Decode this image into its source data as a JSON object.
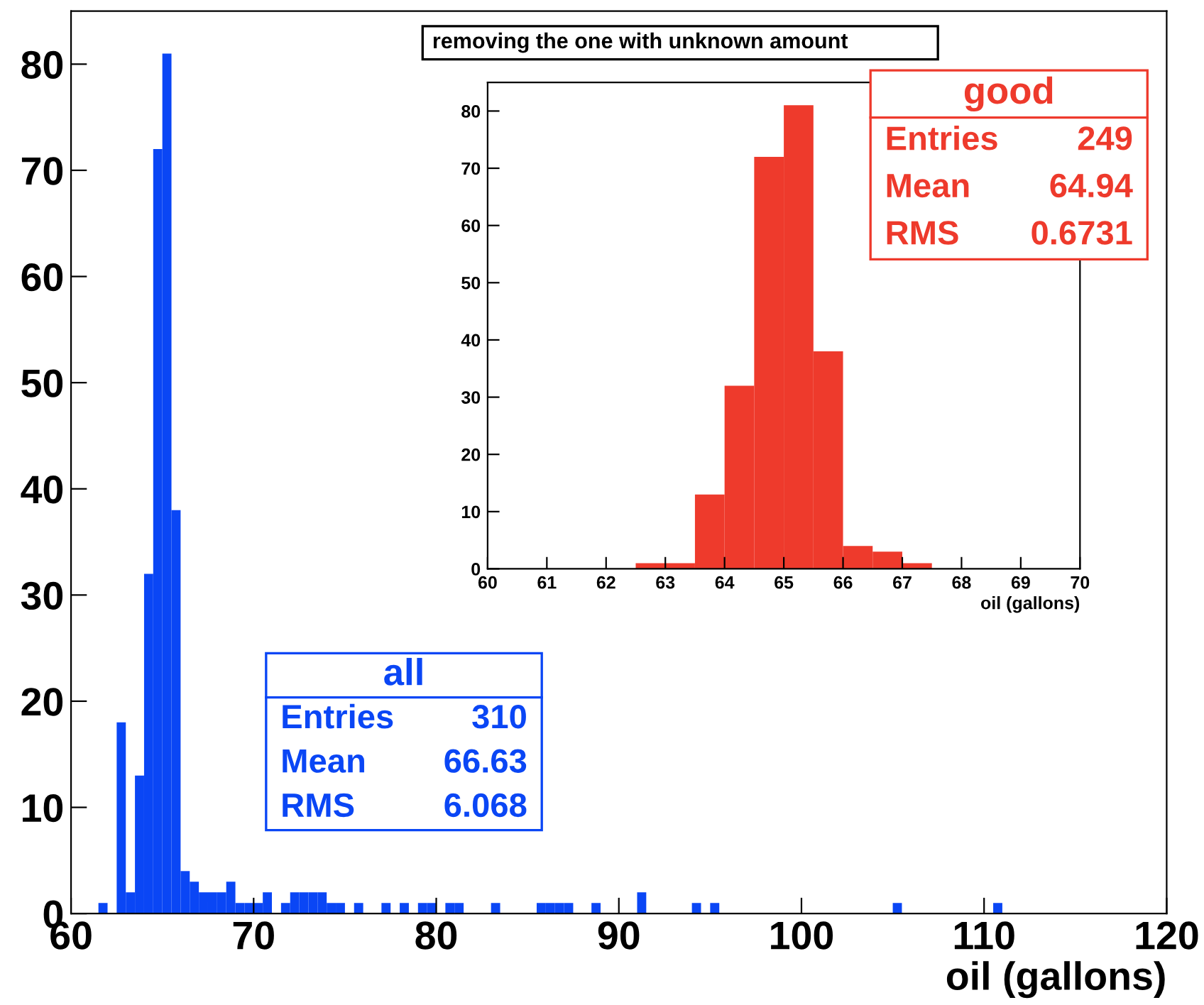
{
  "chart_data": [
    {
      "type": "histogram",
      "color": "#0a46f5",
      "xlabel": "oil (gallons)",
      "bins": [
        60,
        60.5,
        61,
        61.5,
        62,
        62.5,
        63,
        63.5,
        64,
        64.5,
        65,
        65.5,
        66,
        66.5,
        67,
        67.5,
        68,
        68.5,
        69,
        69.5,
        70,
        70.5,
        71,
        71.5,
        72,
        72.5,
        73,
        73.5,
        74,
        74.5,
        75,
        75.5,
        76,
        76.5,
        77,
        77.5,
        78,
        78.5,
        79,
        79.5,
        80,
        80.5,
        81,
        81.5,
        82,
        82.5,
        83,
        83.5,
        84,
        84.5,
        85,
        85.5,
        86,
        86.5,
        87,
        87.5,
        88,
        88.5,
        89,
        89.5,
        90,
        90.5,
        91,
        91.5,
        92,
        92.5,
        93,
        93.5,
        94,
        94.5,
        95,
        95.5,
        96,
        96.5,
        97,
        97.5,
        98,
        98.5,
        99,
        99.5,
        100,
        100.5,
        101,
        101.5,
        102,
        102.5,
        103,
        103.5,
        104,
        104.5,
        105,
        105.5,
        106,
        106.5,
        107,
        107.5,
        108,
        108.5,
        109,
        109.5,
        110,
        110.5,
        111,
        111.5,
        112,
        112.5,
        113,
        113.5,
        114,
        114.5,
        115,
        115.5,
        116,
        116.5,
        117,
        117.5,
        118,
        118.5,
        119,
        119.5,
        120
      ],
      "values": [
        0,
        0,
        0,
        1,
        0,
        18,
        2,
        13,
        32,
        72,
        81,
        38,
        4,
        3,
        2,
        2,
        2,
        3,
        1,
        1,
        1,
        2,
        0,
        1,
        2,
        2,
        2,
        2,
        1,
        1,
        0,
        1,
        0,
        0,
        1,
        0,
        1,
        0,
        1,
        1,
        0,
        1,
        1,
        0,
        0,
        0,
        1,
        0,
        0,
        0,
        0,
        1,
        1,
        1,
        1,
        0,
        0,
        1,
        0,
        0,
        0,
        0,
        2,
        0,
        0,
        0,
        0,
        0,
        1,
        0,
        1,
        0,
        0,
        0,
        0,
        0,
        0,
        0,
        0,
        0,
        0,
        0,
        0,
        0,
        0,
        0,
        0,
        0,
        0,
        0,
        1,
        0,
        0,
        0,
        0,
        0,
        0,
        0,
        0,
        0,
        0,
        1,
        0,
        0,
        0,
        0,
        0,
        0,
        0,
        0,
        0,
        0,
        0,
        0,
        0,
        0,
        0,
        0,
        0,
        0
      ],
      "xlim": [
        60,
        120
      ],
      "xticks": [
        60,
        70,
        80,
        90,
        100,
        110,
        120
      ],
      "ylim": [
        0,
        85
      ],
      "yticks": [
        0,
        10,
        20,
        30,
        40,
        50,
        60,
        70,
        80
      ],
      "annotations": [
        "all",
        "Entries",
        "310",
        "Mean",
        "66.63",
        "RMS",
        "6.068"
      ]
    },
    {
      "type": "histogram",
      "color": "#ee3a2c",
      "title": "removing the one with unknown amount",
      "xlabel": "oil (gallons)",
      "bins": [
        60,
        60.5,
        61,
        61.5,
        62,
        62.5,
        63,
        63.5,
        64,
        64.5,
        65,
        65.5,
        66,
        66.5,
        67,
        67.5,
        68,
        68.5,
        69,
        69.5,
        70
      ],
      "values": [
        0,
        0,
        0,
        0,
        0,
        1,
        1,
        13,
        32,
        72,
        81,
        38,
        4,
        3,
        1,
        0,
        0,
        0,
        0,
        0
      ],
      "xlim": [
        60,
        70
      ],
      "xticks": [
        60,
        61,
        62,
        63,
        64,
        65,
        66,
        67,
        68,
        69,
        70
      ],
      "ylim": [
        0,
        85
      ],
      "yticks": [
        0,
        10,
        20,
        30,
        40,
        50,
        60,
        70,
        80
      ],
      "annotations": [
        "good",
        "Entries",
        "249",
        "Mean",
        "64.94",
        "RMS",
        "0.6731"
      ]
    }
  ]
}
